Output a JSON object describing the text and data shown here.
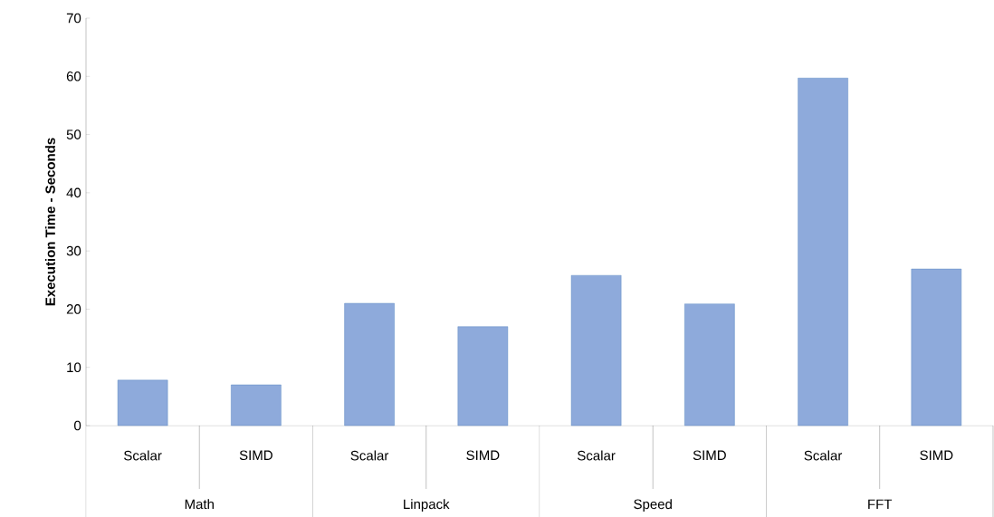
{
  "chart_data": {
    "type": "bar",
    "ylabel": "Execution Time - Seconds",
    "categories": [
      "Scalar",
      "SIMD",
      "Scalar",
      "SIMD",
      "Scalar",
      "SIMD",
      "Scalar",
      "SIMD"
    ],
    "values": [
      7.8,
      7.0,
      21.0,
      17.0,
      25.8,
      20.9,
      59.7,
      26.9
    ],
    "color": "#8eaadb",
    "annotations": [
      "Math",
      "Linpack",
      "Speed",
      "FFT"
    ],
    "ylim": [
      0,
      70
    ],
    "yticks": [
      0,
      10,
      20,
      30,
      40,
      50,
      60,
      70
    ],
    "grid": false
  }
}
